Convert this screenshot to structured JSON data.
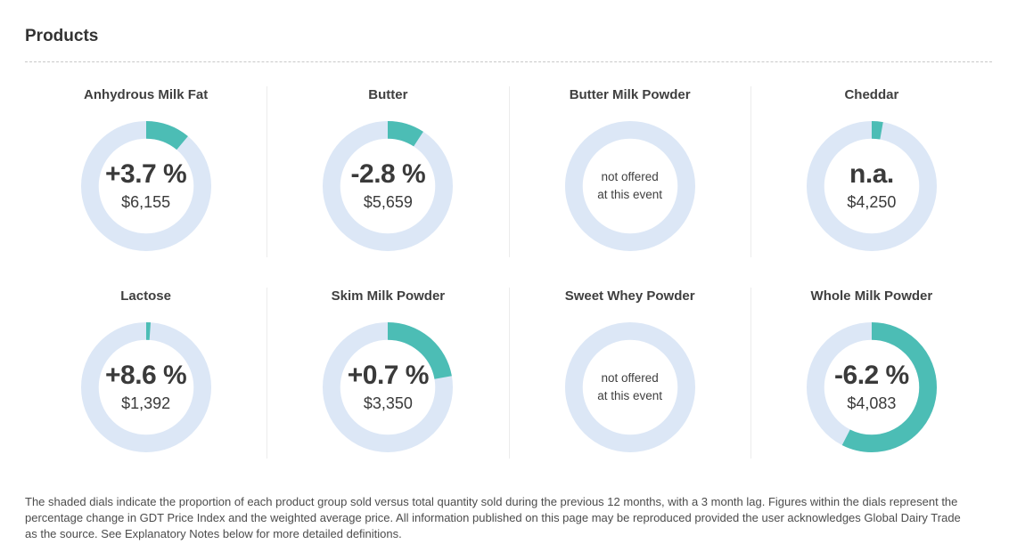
{
  "title": "Products",
  "colors": {
    "arc": "#4cbdb5",
    "ring": "#dce7f6",
    "text": "#3a3a3a"
  },
  "products": [
    {
      "name": "Anhydrous Milk Fat",
      "change": "+3.7 %",
      "price": "$6,155",
      "share_pct": 11.1
    },
    {
      "name": "Butter",
      "change": "-2.8 %",
      "price": "$5,659",
      "share_pct": 9.2
    },
    {
      "name": "Butter Milk Powder",
      "note_line1": "not offered",
      "note_line2": "at this event",
      "share_pct": 0
    },
    {
      "name": "Cheddar",
      "change": "n.a.",
      "price": "$4,250",
      "share_pct": 2.8
    },
    {
      "name": "Lactose",
      "change": "+8.6 %",
      "price": "$1,392",
      "share_pct": 1.1
    },
    {
      "name": "Skim Milk Powder",
      "change": "+0.7 %",
      "price": "$3,350",
      "share_pct": 22.2
    },
    {
      "name": "Sweet Whey Powder",
      "note_line1": "not offered",
      "note_line2": "at this event",
      "share_pct": 0
    },
    {
      "name": "Whole Milk Powder",
      "change": "-6.2 %",
      "price": "$4,083",
      "share_pct": 57.5
    }
  ],
  "chart_data": {
    "type": "donut-dials",
    "title": "Products",
    "description": "Shaded dial arc = proportion of product group sold vs total quantity sold during previous 12 months (3 month lag); center figures = percentage change in GDT Price Index and weighted average price.",
    "dials": [
      {
        "label": "Anhydrous Milk Fat",
        "price_index_change_pct": 3.7,
        "weighted_avg_price_usd": 6155,
        "share_of_quantity_sold_pct": 11.1
      },
      {
        "label": "Butter",
        "price_index_change_pct": -2.8,
        "weighted_avg_price_usd": 5659,
        "share_of_quantity_sold_pct": 9.2
      },
      {
        "label": "Butter Milk Powder",
        "status": "not offered at this event",
        "share_of_quantity_sold_pct": 0
      },
      {
        "label": "Cheddar",
        "price_index_change_pct": null,
        "price_index_change_label": "n.a.",
        "weighted_avg_price_usd": 4250,
        "share_of_quantity_sold_pct": 2.8
      },
      {
        "label": "Lactose",
        "price_index_change_pct": 8.6,
        "weighted_avg_price_usd": 1392,
        "share_of_quantity_sold_pct": 1.1
      },
      {
        "label": "Skim Milk Powder",
        "price_index_change_pct": 0.7,
        "weighted_avg_price_usd": 3350,
        "share_of_quantity_sold_pct": 22.2
      },
      {
        "label": "Sweet Whey Powder",
        "status": "not offered at this event",
        "share_of_quantity_sold_pct": 0
      },
      {
        "label": "Whole Milk Powder",
        "price_index_change_pct": -6.2,
        "weighted_avg_price_usd": 4083,
        "share_of_quantity_sold_pct": 57.5
      }
    ]
  },
  "footnote": "The shaded dials indicate the proportion of each product group sold versus total quantity sold during the previous 12 months, with a 3 month lag. Figures within the dials represent the percentage change in GDT Price Index and the weighted average price. All information published on this page may be reproduced provided the user acknowledges Global Dairy Trade as the source. See Explanatory Notes below for more detailed definitions."
}
